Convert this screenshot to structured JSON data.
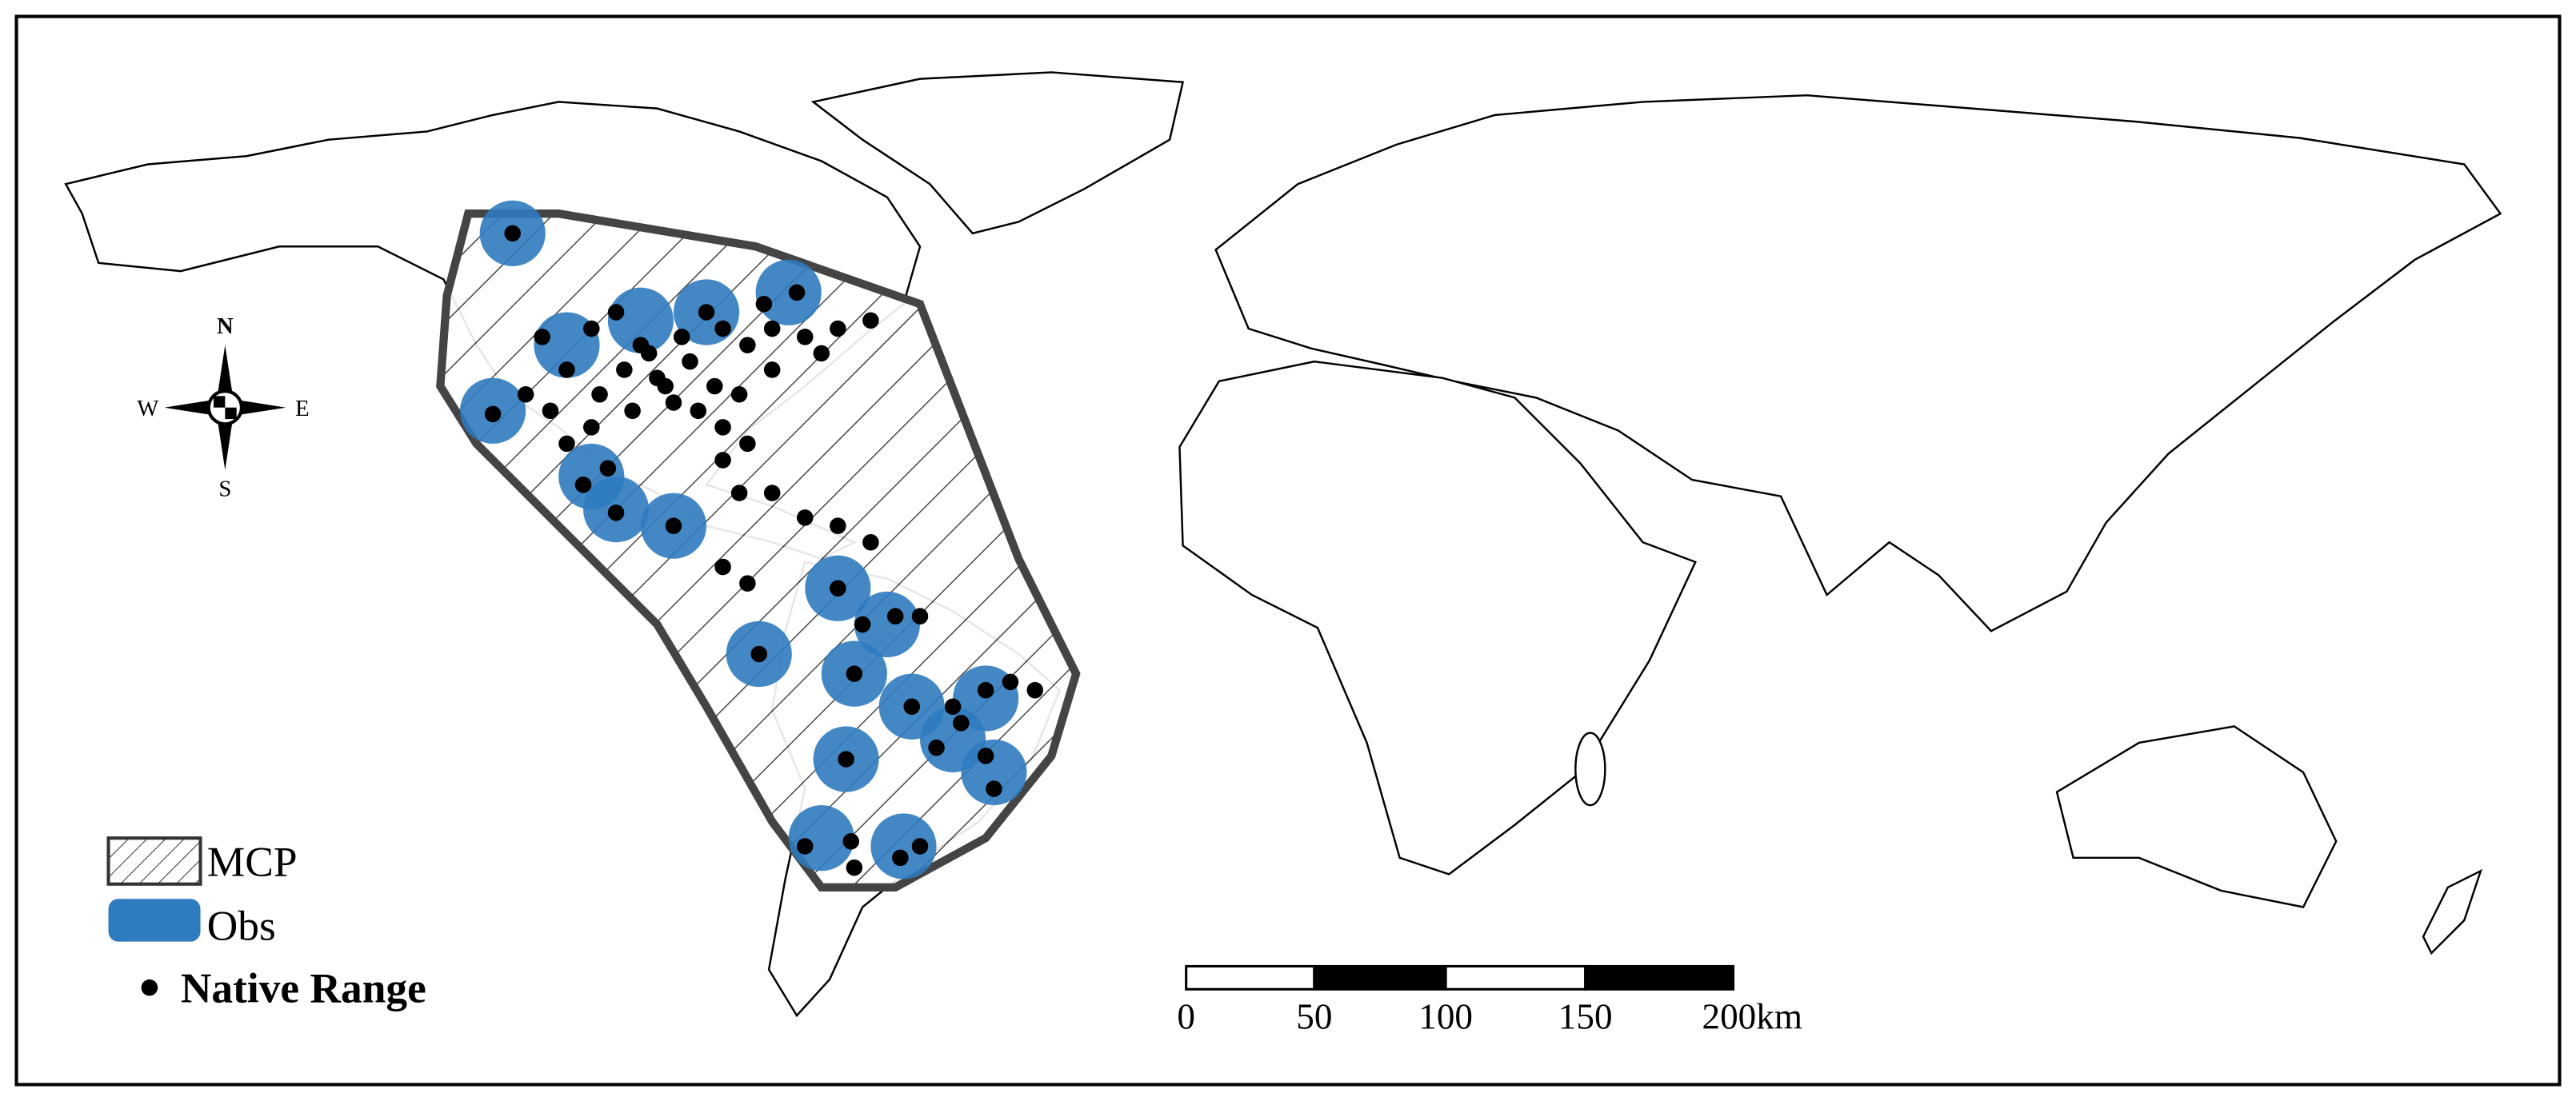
{
  "compass": {
    "n": "N",
    "e": "E",
    "s": "S",
    "w": "W"
  },
  "legend": {
    "items": [
      "MCP",
      "Obs",
      "Native Range"
    ]
  },
  "scale_bar": {
    "labels": [
      "0",
      "50",
      "100",
      "150",
      "200km"
    ]
  }
}
